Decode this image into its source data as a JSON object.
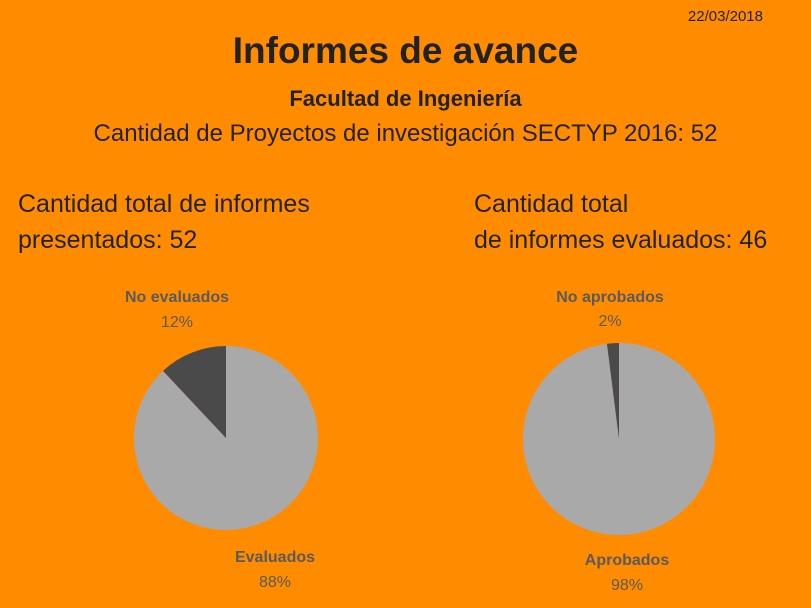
{
  "date": "22/03/2018",
  "title": "Informes de avance",
  "subtitle": "Facultad de Ingeniería",
  "subtitle2": "Cantidad de Proyectos de investigación SECTYP 2016: 52",
  "left": {
    "line1": "Cantidad total de informes",
    "line2": "presentados: 52"
  },
  "right": {
    "line1": "Cantidad total",
    "line2": "de informes evaluados: 46"
  },
  "colors": {
    "background": "#FF8C00",
    "main_slice": "#A9A9A9",
    "minor_slice": "#4A4A4A",
    "label": "#5A5A5A"
  },
  "chart_data": [
    {
      "type": "pie",
      "slices": [
        {
          "label": "No evaluados",
          "value": 12,
          "display": "12%"
        },
        {
          "label": "Evaluados",
          "value": 88,
          "display": "88%"
        }
      ]
    },
    {
      "type": "pie",
      "slices": [
        {
          "label": "No aprobados",
          "value": 2,
          "display": "2%"
        },
        {
          "label": "Aprobados",
          "value": 98,
          "display": "98%"
        }
      ]
    }
  ]
}
